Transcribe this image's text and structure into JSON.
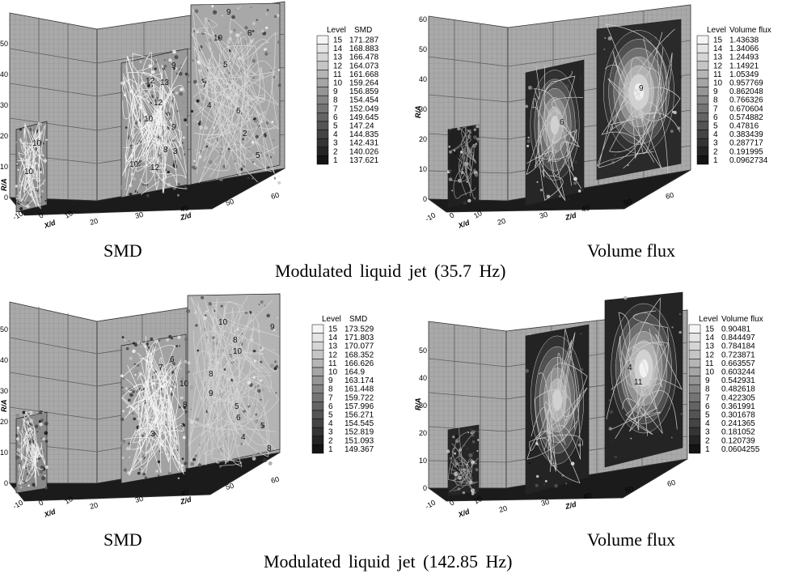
{
  "panels": [
    {
      "quantity": "SMD",
      "caption": "SMD",
      "legend": {
        "header_level": "Level",
        "header_var": "SMD",
        "levels": [
          15,
          14,
          13,
          12,
          11,
          10,
          9,
          8,
          7,
          6,
          5,
          4,
          3,
          2,
          1
        ],
        "values": [
          "171.287",
          "168.883",
          "166.478",
          "164.073",
          "161.668",
          "159.264",
          "156.859",
          "154.454",
          "152.049",
          "149.645",
          "147.24",
          "144.835",
          "142.431",
          "140.026",
          "137.621"
        ]
      },
      "y_ticks": [
        "0",
        "10",
        "20",
        "30",
        "40",
        "50"
      ],
      "x_ticks": [
        "-10",
        "0",
        "10"
      ],
      "z_ticks": [
        "20",
        "30",
        "40",
        "50",
        "60"
      ],
      "xlabel": "X/d",
      "zlabel": "Z/d",
      "ylabel": "R/A",
      "contour_labels": [
        "10",
        "10",
        "9",
        "12",
        "13",
        "12",
        "10",
        "9",
        "8",
        "10",
        "12",
        "9",
        "10",
        "8",
        "5",
        "7",
        "3",
        "4",
        "6",
        "2",
        "5"
      ]
    },
    {
      "quantity": "Volume flux",
      "caption": "Volume  flux",
      "legend": {
        "header_level": "Level",
        "header_var": "Volume flux",
        "levels": [
          15,
          14,
          13,
          12,
          11,
          10,
          9,
          8,
          7,
          6,
          5,
          4,
          3,
          2,
          1
        ],
        "values": [
          "1.43638",
          "1.34066",
          "1.24493",
          "1.14921",
          "1.05349",
          "0.957769",
          "0.862048",
          "0.766326",
          "0.670604",
          "0.574882",
          "0.47816",
          "0.383439",
          "0.287717",
          "0.191995",
          "0.0962734"
        ]
      },
      "y_ticks": [
        "0",
        "10",
        "20",
        "30",
        "40",
        "50",
        "60"
      ],
      "x_ticks": [
        "-10",
        "0",
        "10"
      ],
      "z_ticks": [
        "20",
        "30",
        "40",
        "50",
        "60"
      ],
      "xlabel": "X/d",
      "zlabel": "Z/d",
      "ylabel": "R/A",
      "contour_labels": [
        "9",
        "6"
      ]
    },
    {
      "quantity": "SMD",
      "caption": "SMD",
      "legend": {
        "header_level": "Level",
        "header_var": "SMD",
        "levels": [
          15,
          14,
          13,
          12,
          11,
          10,
          9,
          8,
          7,
          6,
          5,
          4,
          3,
          2,
          1
        ],
        "values": [
          "173.529",
          "171.803",
          "170.077",
          "168.352",
          "166.626",
          "164.9",
          "163.174",
          "161.448",
          "159.722",
          "157.996",
          "156.271",
          "154.545",
          "152.819",
          "151.093",
          "149.367"
        ]
      },
      "y_ticks": [
        "0",
        "10",
        "20",
        "30",
        "40",
        "50"
      ],
      "x_ticks": [
        "-10",
        "0",
        "10"
      ],
      "z_ticks": [
        "20",
        "30",
        "40",
        "50",
        "60"
      ],
      "xlabel": "X/d",
      "zlabel": "Z/d",
      "ylabel": "R/A",
      "contour_labels": [
        "10",
        "9",
        "8",
        "10",
        "6",
        "8",
        "10",
        "7",
        "9",
        "5",
        "8",
        "5",
        "6",
        "4",
        "3",
        "8"
      ]
    },
    {
      "quantity": "Volume flux",
      "caption": "Volume  flux",
      "legend": {
        "header_level": "Level",
        "header_var": "Volume flux",
        "levels": [
          15,
          14,
          13,
          12,
          11,
          10,
          9,
          8,
          7,
          6,
          5,
          4,
          3,
          2,
          1
        ],
        "values": [
          "0.90481",
          "0.844497",
          "0.784184",
          "0.723871",
          "0.663557",
          "0.603244",
          "0.542931",
          "0.482618",
          "0.422305",
          "0.361991",
          "0.301678",
          "0.241365",
          "0.181052",
          "0.120739",
          "0.0604255"
        ]
      },
      "y_ticks": [
        "0",
        "10",
        "20",
        "30",
        "40",
        "50"
      ],
      "x_ticks": [
        "-10",
        "0",
        "10"
      ],
      "z_ticks": [
        "20",
        "30",
        "40",
        "50",
        "60"
      ],
      "xlabel": "X/d",
      "zlabel": "Z/d",
      "ylabel": "R/A",
      "contour_labels": [
        "4",
        "11"
      ]
    }
  ],
  "row_captions": [
    "Modulated  liquid  jet  (35.7  Hz)",
    "Modulated  liquid  jet  (142.85  Hz)"
  ],
  "chart_data": [
    {
      "type": "heatmap",
      "title": "",
      "quantity": "SMD",
      "run": "Modulated liquid jet (35.7 Hz)",
      "xlabel": "X/d",
      "zlabel": "Z/d",
      "ylabel": "R/A",
      "z_slices": [
        20,
        40,
        60
      ],
      "z_range": [
        20,
        60
      ],
      "x_range": [
        -15,
        15
      ],
      "y_range": [
        0,
        55
      ],
      "levels": [
        15,
        14,
        13,
        12,
        11,
        10,
        9,
        8,
        7,
        6,
        5,
        4,
        3,
        2,
        1
      ],
      "level_values": [
        171.287,
        168.883,
        166.478,
        164.073,
        161.668,
        159.264,
        156.859,
        154.454,
        152.049,
        149.645,
        147.24,
        144.835,
        142.431,
        140.026,
        137.621
      ]
    },
    {
      "type": "heatmap",
      "title": "",
      "quantity": "Volume flux",
      "run": "Modulated liquid jet (35.7 Hz)",
      "xlabel": "X/d",
      "zlabel": "Z/d",
      "ylabel": "R/A",
      "z_slices": [
        20,
        40,
        60
      ],
      "z_range": [
        20,
        60
      ],
      "x_range": [
        -15,
        15
      ],
      "y_range": [
        0,
        65
      ],
      "levels": [
        15,
        14,
        13,
        12,
        11,
        10,
        9,
        8,
        7,
        6,
        5,
        4,
        3,
        2,
        1
      ],
      "level_values": [
        1.43638,
        1.34066,
        1.24493,
        1.14921,
        1.05349,
        0.957769,
        0.862048,
        0.766326,
        0.670604,
        0.574882,
        0.47816,
        0.383439,
        0.287717,
        0.191995,
        0.0962734
      ]
    },
    {
      "type": "heatmap",
      "title": "",
      "quantity": "SMD",
      "run": "Modulated liquid jet (142.85 Hz)",
      "xlabel": "X/d",
      "zlabel": "Z/d",
      "ylabel": "R/A",
      "z_slices": [
        20,
        40,
        60
      ],
      "z_range": [
        20,
        60
      ],
      "x_range": [
        -15,
        15
      ],
      "y_range": [
        0,
        55
      ],
      "levels": [
        15,
        14,
        13,
        12,
        11,
        10,
        9,
        8,
        7,
        6,
        5,
        4,
        3,
        2,
        1
      ],
      "level_values": [
        173.529,
        171.803,
        170.077,
        168.352,
        166.626,
        164.9,
        163.174,
        161.448,
        159.722,
        157.996,
        156.271,
        154.545,
        152.819,
        151.093,
        149.367
      ]
    },
    {
      "type": "heatmap",
      "title": "",
      "quantity": "Volume flux",
      "run": "Modulated liquid jet (142.85 Hz)",
      "xlabel": "X/d",
      "zlabel": "Z/d",
      "ylabel": "R/A",
      "z_slices": [
        20,
        40,
        60
      ],
      "z_range": [
        20,
        60
      ],
      "x_range": [
        -15,
        15
      ],
      "y_range": [
        0,
        55
      ],
      "levels": [
        15,
        14,
        13,
        12,
        11,
        10,
        9,
        8,
        7,
        6,
        5,
        4,
        3,
        2,
        1
      ],
      "level_values": [
        0.90481,
        0.844497,
        0.784184,
        0.723871,
        0.663557,
        0.603244,
        0.542931,
        0.482618,
        0.422305,
        0.361991,
        0.301678,
        0.241365,
        0.181052,
        0.120739,
        0.0604255
      ]
    }
  ]
}
